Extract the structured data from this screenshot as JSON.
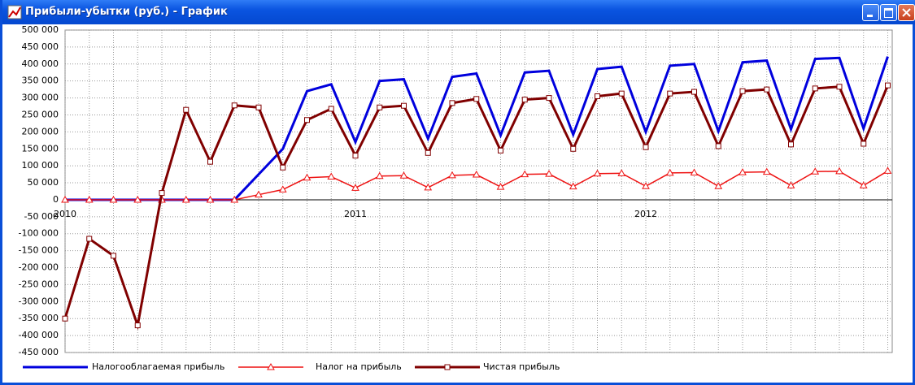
{
  "chart_data": {
    "type": "line",
    "title": "Прибыли-убытки (руб.) - График",
    "categories": [
      "2010",
      null,
      null,
      null,
      null,
      null,
      null,
      null,
      null,
      null,
      null,
      null,
      "2011",
      null,
      null,
      null,
      null,
      null,
      null,
      null,
      null,
      null,
      null,
      null,
      "2012",
      null,
      null,
      null,
      null,
      null,
      null,
      null,
      null,
      null,
      null
    ],
    "series": [
      {
        "name": "Налогооблагаемая прибыль",
        "color": "#0000dd",
        "values": [
          0,
          0,
          0,
          0,
          0,
          0,
          0,
          0,
          75000,
          150000,
          320000,
          340000,
          170000,
          350000,
          355000,
          180000,
          362000,
          372000,
          190000,
          375000,
          380000,
          192000,
          385000,
          392000,
          200000,
          395000,
          400000,
          202000,
          405000,
          410000,
          208000,
          415000,
          418000,
          210000,
          422000
        ]
      },
      {
        "name": "Налог на прибыль",
        "color": "#ee1111",
        "marker": "triangle",
        "values": [
          0,
          0,
          0,
          0,
          0,
          0,
          0,
          0,
          15000,
          30000,
          65000,
          68000,
          35000,
          70000,
          71000,
          36000,
          72000,
          74000,
          38000,
          75000,
          76000,
          39000,
          77000,
          78000,
          40000,
          79000,
          80000,
          40000,
          81000,
          82000,
          42000,
          83000,
          84000,
          42000,
          85000
        ]
      },
      {
        "name": "Чистая прибыль",
        "color": "#800000",
        "marker": "square",
        "values": [
          -350000,
          -115000,
          -165000,
          -370000,
          20000,
          265000,
          112000,
          278000,
          272000,
          95000,
          235000,
          268000,
          130000,
          272000,
          277000,
          138000,
          285000,
          297000,
          145000,
          295000,
          300000,
          150000,
          305000,
          313000,
          155000,
          313000,
          318000,
          158000,
          320000,
          325000,
          163000,
          328000,
          333000,
          165000,
          337000
        ]
      }
    ],
    "ylim": [
      -450000,
      500000
    ],
    "yticks": [
      {
        "value": -450000,
        "label": "-450 000"
      },
      {
        "value": -400000,
        "label": "-400 000"
      },
      {
        "value": -350000,
        "label": "-350 000"
      },
      {
        "value": -300000,
        "label": "-300 000"
      },
      {
        "value": -250000,
        "label": "-250 000"
      },
      {
        "value": -200000,
        "label": "-200 000"
      },
      {
        "value": -150000,
        "label": "-150 000"
      },
      {
        "value": -100000,
        "label": "-100 000"
      },
      {
        "value": -50000,
        "label": "-50 000"
      },
      0,
      {
        "value": 50000,
        "label": "50 000"
      },
      {
        "value": 100000,
        "label": "100 000"
      },
      {
        "value": 150000,
        "label": "150 000"
      },
      {
        "value": 200000,
        "label": "200 000"
      },
      {
        "value": 250000,
        "label": "250 000"
      },
      {
        "value": 300000,
        "label": "300 000"
      },
      {
        "value": 350000,
        "label": "350 000"
      },
      {
        "value": 400000,
        "label": "400 000"
      },
      {
        "value": 450000,
        "label": "450 000"
      },
      {
        "value": 500000,
        "label": "500 000"
      }
    ],
    "grid": true
  }
}
